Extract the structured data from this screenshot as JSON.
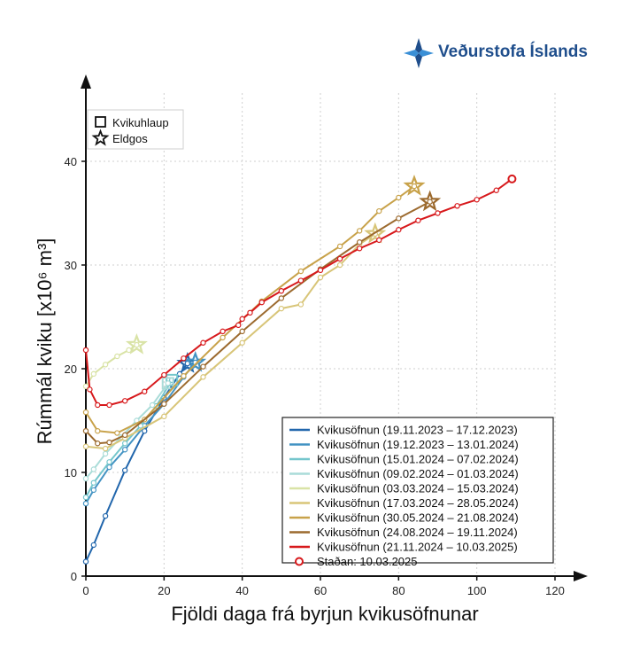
{
  "logo": {
    "text": "Veðurstofa Íslands",
    "color": "#1f4e8c"
  },
  "symbol_legend": [
    {
      "shape": "square",
      "label": "Kvikuhlaup"
    },
    {
      "shape": "star",
      "label": "Eldgos"
    }
  ],
  "chart_data": {
    "type": "line",
    "xlabel": "Fjöldi daga frá byrjun kvikusöfnunar",
    "ylabel": "Rúmmál kviku [x10⁶ m³]",
    "xlim": [
      0,
      120
    ],
    "ylim": [
      0,
      40
    ],
    "xticks": [
      0,
      20,
      40,
      60,
      80,
      100,
      120
    ],
    "yticks": [
      0,
      10,
      20,
      30,
      40
    ],
    "grid": true,
    "legend_position": "bottom-right",
    "series": [
      {
        "name": "Kvikusöfnun (19.11.2023 – 17.12.2023)",
        "color": "#2166ac",
        "x": [
          0,
          2,
          5,
          10,
          15,
          20,
          24,
          26
        ],
        "y": [
          1.4,
          3.0,
          5.8,
          10.2,
          14.0,
          17.2,
          19.5,
          20.5
        ],
        "end_marker": "star"
      },
      {
        "name": "Kvikusöfnun (19.12.2023 – 13.01.2024)",
        "color": "#4393c3",
        "x": [
          0,
          2,
          6,
          10,
          15,
          20,
          25,
          28
        ],
        "y": [
          7.0,
          8.3,
          10.5,
          12.2,
          14.5,
          16.6,
          19.2,
          20.6
        ],
        "end_marker": "star"
      },
      {
        "name": "Kvikusöfnun (15.01.2024 – 07.02.2024)",
        "color": "#74c6cc",
        "x": [
          0,
          2,
          6,
          10,
          14,
          18,
          22
        ],
        "y": [
          7.6,
          9.0,
          11.0,
          12.8,
          14.5,
          16.4,
          18.9
        ],
        "end_marker": "square"
      },
      {
        "name": "Kvikusöfnun (09.02.2024 – 01.03.2024)",
        "color": "#aadcd8",
        "x": [
          0,
          2,
          5,
          9,
          13,
          17,
          21
        ],
        "y": [
          9.4,
          10.3,
          11.8,
          13.4,
          15.0,
          16.5,
          18.6
        ],
        "end_marker": "square"
      },
      {
        "name": "Kvikusöfnun (03.03.2024 – 15.03.2024)",
        "color": "#d9e3a6",
        "x": [
          0,
          2,
          5,
          8,
          11,
          13
        ],
        "y": [
          18.3,
          19.5,
          20.4,
          21.2,
          21.8,
          22.3
        ],
        "end_marker": "star"
      },
      {
        "name": "Kvikusöfnun (17.03.2024 – 28.05.2024)",
        "color": "#d8c578",
        "x": [
          0,
          5,
          10,
          20,
          30,
          40,
          50,
          55,
          60,
          65,
          70,
          74
        ],
        "y": [
          12.5,
          12.3,
          13.3,
          15.4,
          19.2,
          22.5,
          25.8,
          26.2,
          28.8,
          30.0,
          32.0,
          33.0
        ],
        "end_marker": "star"
      },
      {
        "name": "Kvikusöfnun (30.05.2024 – 21.08.2024)",
        "color": "#c8a24a",
        "x": [
          0,
          3,
          8,
          15,
          25,
          35,
          45,
          55,
          65,
          70,
          75,
          80,
          84
        ],
        "y": [
          15.8,
          14.0,
          13.8,
          15.1,
          19.3,
          23.0,
          26.5,
          29.4,
          31.8,
          33.3,
          35.2,
          36.5,
          37.6
        ],
        "end_marker": "star"
      },
      {
        "name": "Kvikusöfnun (24.08.2024 – 19.11.2024)",
        "color": "#9c6a2e",
        "x": [
          0,
          3,
          6,
          10,
          20,
          30,
          40,
          50,
          60,
          70,
          80,
          88
        ],
        "y": [
          14.0,
          12.8,
          12.9,
          13.6,
          16.6,
          20.2,
          23.6,
          26.8,
          29.6,
          32.2,
          34.5,
          36.1
        ],
        "end_marker": "star"
      },
      {
        "name": "Kvikusöfnun (21.11.2024 – 10.03.2025)",
        "color": "#d7191c",
        "x": [
          0,
          1,
          3,
          6,
          10,
          15,
          20,
          25,
          30,
          35,
          39,
          40,
          42,
          45,
          50,
          55,
          60,
          65,
          70,
          75,
          80,
          85,
          90,
          95,
          100,
          105,
          109
        ],
        "y": [
          21.8,
          18.0,
          16.5,
          16.5,
          16.9,
          17.8,
          19.4,
          21.0,
          22.5,
          23.6,
          24.2,
          24.8,
          25.4,
          26.4,
          27.5,
          28.5,
          29.5,
          30.6,
          31.6,
          32.4,
          33.4,
          34.3,
          35.0,
          35.7,
          36.3,
          37.2,
          38.3
        ],
        "end_marker": "none"
      }
    ],
    "current_point": {
      "label": "Staðan: 10.03.2025",
      "x": 109,
      "y": 38.3,
      "color": "#d7191c"
    }
  }
}
